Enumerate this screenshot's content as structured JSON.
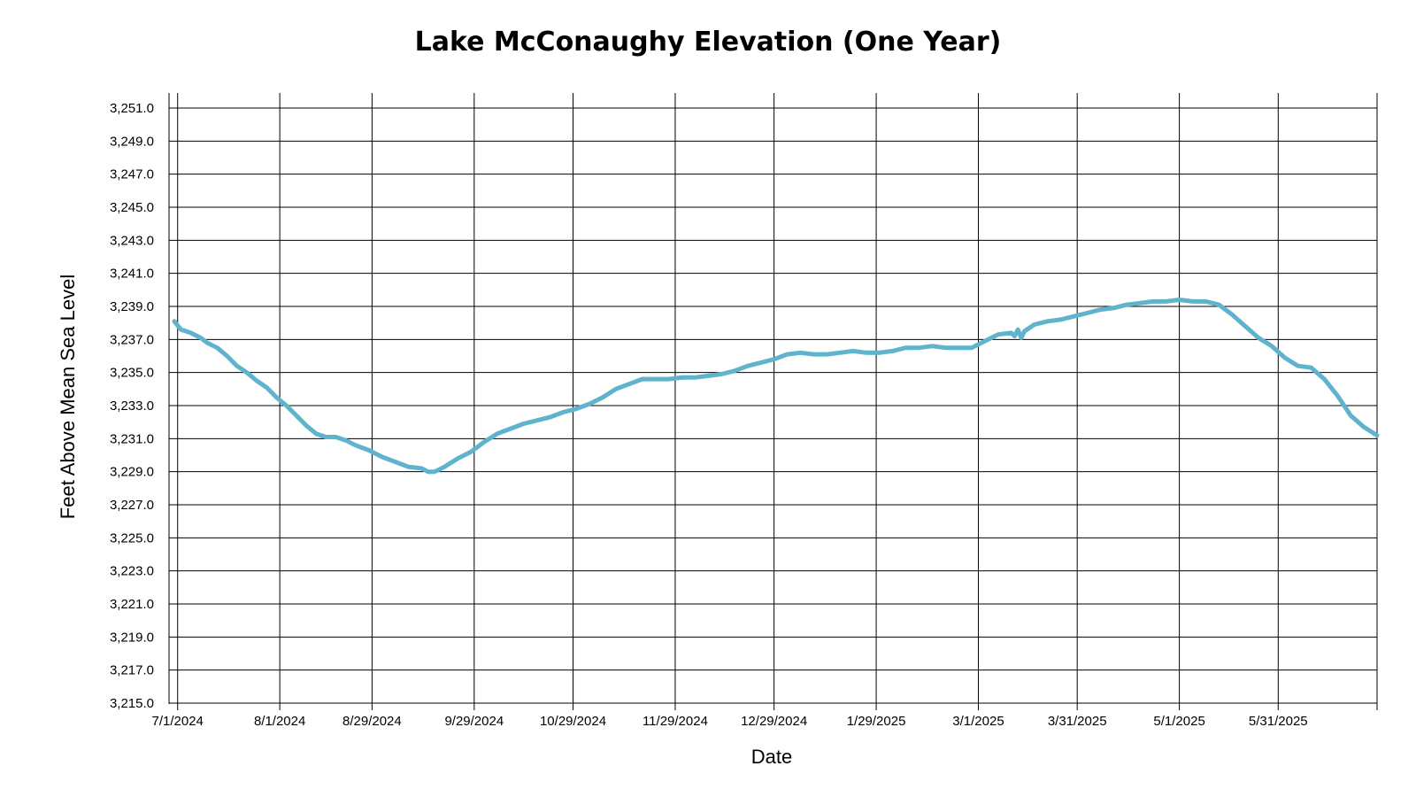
{
  "chart_data": {
    "type": "line",
    "title": "Lake McConaughy Elevation (One Year)",
    "xlabel": "Date",
    "ylabel": "Feet Above Mean Sea Level",
    "x_tick_labels": [
      "7/1/2024",
      "8/1/2024",
      "8/29/2024",
      "9/29/2024",
      "10/29/2024",
      "11/29/2024",
      "12/29/2024",
      "1/29/2025",
      "3/1/2025",
      "3/31/2025",
      "5/1/2025",
      "5/31/2025"
    ],
    "y_tick_labels": [
      "3,215.0",
      "3,217.0",
      "3,219.0",
      "3,221.0",
      "3,223.0",
      "3,225.0",
      "3,227.0",
      "3,229.0",
      "3,231.0",
      "3,233.0",
      "3,235.0",
      "3,237.0",
      "3,239.0",
      "3,241.0",
      "3,243.0",
      "3,245.0",
      "3,247.0",
      "3,249.0",
      "3,251.0"
    ],
    "xlim": [
      "2024-06-30",
      "2025-06-30"
    ],
    "ylim": [
      3215.0,
      3251.0
    ],
    "grid": true,
    "line_color": "#5fb3cc",
    "series": [
      {
        "points": [
          [
            "2024-06-30",
            3238.1
          ],
          [
            "2024-07-02",
            3237.6
          ],
          [
            "2024-07-05",
            3237.4
          ],
          [
            "2024-07-08",
            3237.1
          ],
          [
            "2024-07-10",
            3236.8
          ],
          [
            "2024-07-13",
            3236.5
          ],
          [
            "2024-07-16",
            3236.0
          ],
          [
            "2024-07-19",
            3235.4
          ],
          [
            "2024-07-22",
            3235.0
          ],
          [
            "2024-07-25",
            3234.5
          ],
          [
            "2024-07-28",
            3234.1
          ],
          [
            "2024-07-31",
            3233.5
          ],
          [
            "2024-08-03",
            3233.0
          ],
          [
            "2024-08-06",
            3232.4
          ],
          [
            "2024-08-09",
            3231.8
          ],
          [
            "2024-08-12",
            3231.3
          ],
          [
            "2024-08-15",
            3231.1
          ],
          [
            "2024-08-18",
            3231.1
          ],
          [
            "2024-08-21",
            3230.9
          ],
          [
            "2024-08-24",
            3230.6
          ],
          [
            "2024-08-28",
            3230.3
          ],
          [
            "2024-09-01",
            3229.9
          ],
          [
            "2024-09-05",
            3229.6
          ],
          [
            "2024-09-09",
            3229.3
          ],
          [
            "2024-09-13",
            3229.2
          ],
          [
            "2024-09-15",
            3229.0
          ],
          [
            "2024-09-17",
            3229.0
          ],
          [
            "2024-09-20",
            3229.3
          ],
          [
            "2024-09-24",
            3229.8
          ],
          [
            "2024-09-28",
            3230.2
          ],
          [
            "2024-10-02",
            3230.8
          ],
          [
            "2024-10-06",
            3231.3
          ],
          [
            "2024-10-10",
            3231.6
          ],
          [
            "2024-10-14",
            3231.9
          ],
          [
            "2024-10-18",
            3232.1
          ],
          [
            "2024-10-22",
            3232.3
          ],
          [
            "2024-10-26",
            3232.6
          ],
          [
            "2024-10-30",
            3232.8
          ],
          [
            "2024-11-03",
            3233.1
          ],
          [
            "2024-11-07",
            3233.5
          ],
          [
            "2024-11-11",
            3234.0
          ],
          [
            "2024-11-15",
            3234.3
          ],
          [
            "2024-11-19",
            3234.6
          ],
          [
            "2024-11-23",
            3234.6
          ],
          [
            "2024-11-27",
            3234.6
          ],
          [
            "2024-12-01",
            3234.7
          ],
          [
            "2024-12-05",
            3234.7
          ],
          [
            "2024-12-09",
            3234.8
          ],
          [
            "2024-12-13",
            3234.9
          ],
          [
            "2024-12-17",
            3235.1
          ],
          [
            "2024-12-21",
            3235.4
          ],
          [
            "2024-12-25",
            3235.6
          ],
          [
            "2024-12-29",
            3235.8
          ],
          [
            "2025-01-02",
            3236.1
          ],
          [
            "2025-01-06",
            3236.2
          ],
          [
            "2025-01-10",
            3236.1
          ],
          [
            "2025-01-14",
            3236.1
          ],
          [
            "2025-01-18",
            3236.2
          ],
          [
            "2025-01-22",
            3236.3
          ],
          [
            "2025-01-26",
            3236.2
          ],
          [
            "2025-01-30",
            3236.2
          ],
          [
            "2025-02-03",
            3236.3
          ],
          [
            "2025-02-07",
            3236.5
          ],
          [
            "2025-02-11",
            3236.5
          ],
          [
            "2025-02-15",
            3236.6
          ],
          [
            "2025-02-19",
            3236.5
          ],
          [
            "2025-02-23",
            3236.5
          ],
          [
            "2025-02-27",
            3236.5
          ],
          [
            "2025-03-03",
            3236.9
          ],
          [
            "2025-03-07",
            3237.3
          ],
          [
            "2025-03-11",
            3237.4
          ],
          [
            "2025-03-12",
            3237.2
          ],
          [
            "2025-03-13",
            3237.6
          ],
          [
            "2025-03-14",
            3237.1
          ],
          [
            "2025-03-15",
            3237.5
          ],
          [
            "2025-03-18",
            3237.9
          ],
          [
            "2025-03-22",
            3238.1
          ],
          [
            "2025-03-26",
            3238.2
          ],
          [
            "2025-03-30",
            3238.4
          ],
          [
            "2025-04-03",
            3238.6
          ],
          [
            "2025-04-07",
            3238.8
          ],
          [
            "2025-04-11",
            3238.9
          ],
          [
            "2025-04-15",
            3239.1
          ],
          [
            "2025-04-19",
            3239.2
          ],
          [
            "2025-04-23",
            3239.3
          ],
          [
            "2025-04-27",
            3239.3
          ],
          [
            "2025-05-01",
            3239.4
          ],
          [
            "2025-05-05",
            3239.3
          ],
          [
            "2025-05-09",
            3239.3
          ],
          [
            "2025-05-13",
            3239.1
          ],
          [
            "2025-05-17",
            3238.5
          ],
          [
            "2025-05-21",
            3237.8
          ],
          [
            "2025-05-25",
            3237.1
          ],
          [
            "2025-05-29",
            3236.6
          ],
          [
            "2025-06-02",
            3235.9
          ],
          [
            "2025-06-06",
            3235.4
          ],
          [
            "2025-06-10",
            3235.3
          ],
          [
            "2025-06-14",
            3234.6
          ],
          [
            "2025-06-18",
            3233.6
          ],
          [
            "2025-06-22",
            3232.4
          ],
          [
            "2025-06-26",
            3231.7
          ],
          [
            "2025-06-30",
            3231.2
          ]
        ]
      }
    ]
  }
}
